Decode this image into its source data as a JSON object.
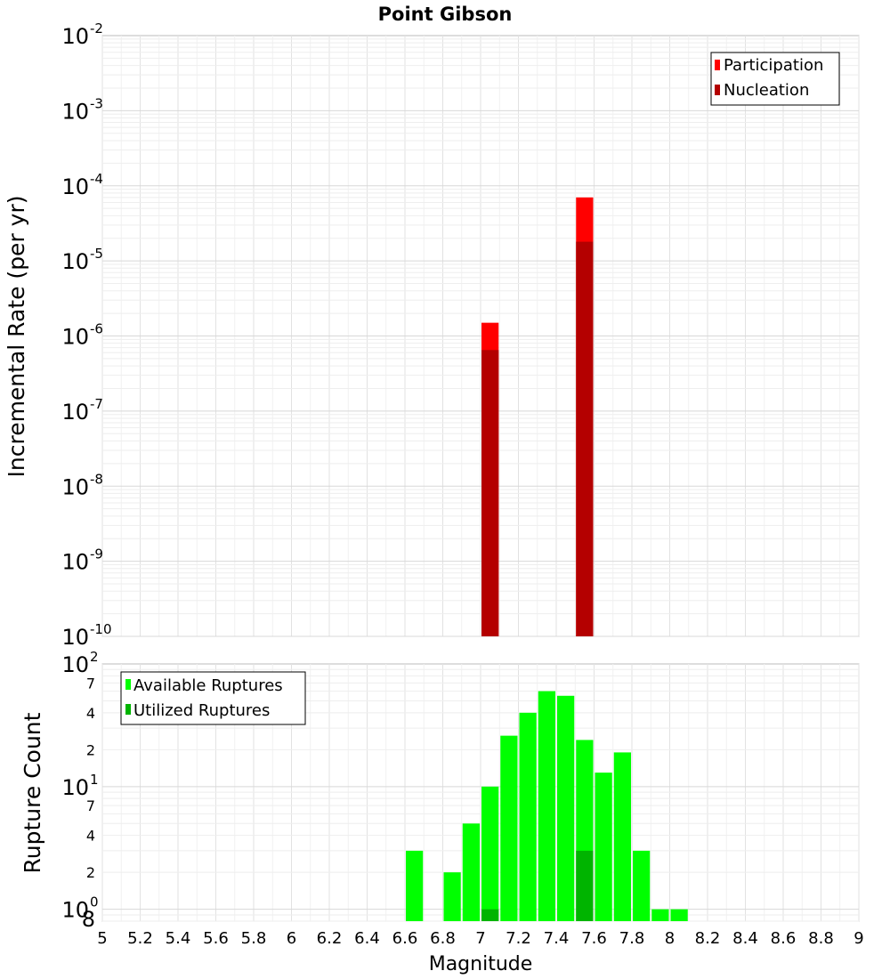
{
  "chart_data": [
    {
      "type": "bar",
      "title": "Point Gibson",
      "ylabel": "Incremental Rate (per yr)",
      "xlabel": "",
      "yscale": "log",
      "ylim": [
        1e-10,
        0.01
      ],
      "xlim": [
        5,
        9
      ],
      "grid": true,
      "legend_position": "top-right",
      "y_ticks": [
        {
          "base": "10",
          "exp": "-2"
        },
        {
          "base": "10",
          "exp": "-3"
        },
        {
          "base": "10",
          "exp": "-4"
        },
        {
          "base": "10",
          "exp": "-5"
        },
        {
          "base": "10",
          "exp": "-6"
        },
        {
          "base": "10",
          "exp": "-7"
        },
        {
          "base": "10",
          "exp": "-8"
        },
        {
          "base": "10",
          "exp": "-9"
        },
        {
          "base": "10",
          "exp": "-10"
        }
      ],
      "series": [
        {
          "name": "Participation",
          "color": "#ff0000",
          "x": [
            7.05,
            7.55
          ],
          "values": [
            1.5e-06,
            7e-05
          ]
        },
        {
          "name": "Nucleation",
          "color": "#b40000",
          "x": [
            7.05,
            7.55
          ],
          "values": [
            6.5e-07,
            1.8e-05
          ]
        }
      ]
    },
    {
      "type": "bar",
      "title": "",
      "ylabel": "Rupture Count",
      "xlabel": "Magnitude",
      "yscale": "log",
      "ylim": [
        0.8,
        100
      ],
      "xlim": [
        5,
        9
      ],
      "grid": true,
      "legend_position": "top-left",
      "x_ticks": [
        "5",
        "5.2",
        "5.4",
        "5.6",
        "5.8",
        "6",
        "6.2",
        "6.4",
        "6.6",
        "6.8",
        "7",
        "7.2",
        "7.4",
        "7.6",
        "7.8",
        "8",
        "8.2",
        "8.4",
        "8.6",
        "8.8",
        "9"
      ],
      "y_major_ticks": [
        {
          "base": "10",
          "exp": "2"
        },
        {
          "base": "10",
          "exp": "1"
        },
        {
          "base": "10",
          "exp": "0"
        }
      ],
      "y_minor_ticks": [
        "7",
        "4",
        "2",
        "7",
        "4",
        "2",
        "8"
      ],
      "series": [
        {
          "name": "Available Ruptures",
          "color": "#00ff00",
          "x": [
            6.65,
            6.85,
            6.95,
            7.05,
            7.15,
            7.25,
            7.35,
            7.45,
            7.55,
            7.65,
            7.75,
            7.85,
            7.95,
            8.05
          ],
          "values": [
            3,
            2,
            5,
            10,
            26,
            40,
            60,
            55,
            24,
            13,
            19,
            3,
            1,
            1
          ]
        },
        {
          "name": "Utilized Ruptures",
          "color": "#00b400",
          "x": [
            7.05,
            7.55
          ],
          "values": [
            1,
            3
          ]
        }
      ]
    }
  ]
}
